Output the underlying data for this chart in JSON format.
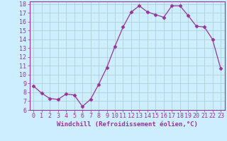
{
  "x": [
    0,
    1,
    2,
    3,
    4,
    5,
    6,
    7,
    8,
    9,
    10,
    11,
    12,
    13,
    14,
    15,
    16,
    17,
    18,
    19,
    20,
    21,
    22,
    23
  ],
  "y": [
    8.7,
    7.9,
    7.3,
    7.2,
    7.8,
    7.7,
    6.4,
    7.2,
    8.9,
    10.8,
    13.2,
    15.4,
    17.1,
    17.8,
    17.1,
    16.8,
    16.5,
    17.8,
    17.8,
    16.7,
    15.5,
    15.4,
    14.0,
    10.7
  ],
  "line_color": "#993399",
  "marker": "D",
  "marker_size": 2.5,
  "bg_color": "#cceeff",
  "grid_color": "#aacccc",
  "xlabel": "Windchill (Refroidissement éolien,°C)",
  "ylim": [
    6,
    18.3
  ],
  "xlim": [
    -0.5,
    23.5
  ],
  "yticks": [
    6,
    7,
    8,
    9,
    10,
    11,
    12,
    13,
    14,
    15,
    16,
    17,
    18
  ],
  "xticks": [
    0,
    1,
    2,
    3,
    4,
    5,
    6,
    7,
    8,
    9,
    10,
    11,
    12,
    13,
    14,
    15,
    16,
    17,
    18,
    19,
    20,
    21,
    22,
    23
  ],
  "label_fontsize": 6.5,
  "tick_fontsize": 6
}
